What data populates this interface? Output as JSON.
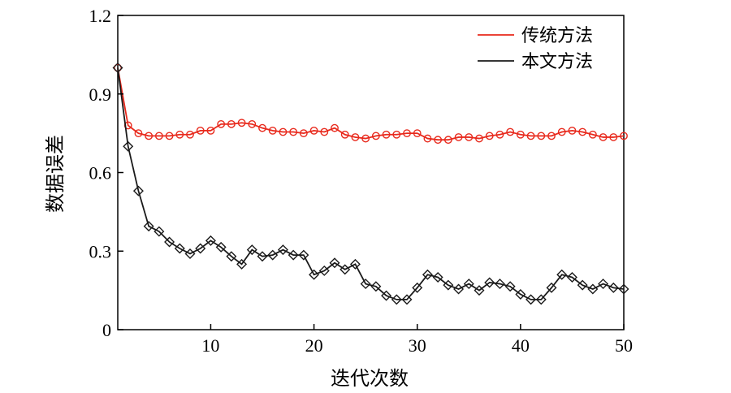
{
  "chart_data": {
    "type": "line",
    "xlabel": "迭代次数",
    "ylabel": "数据误差",
    "xlim": [
      1,
      50
    ],
    "ylim": [
      0,
      1.2
    ],
    "xticks": [
      10,
      20,
      30,
      40,
      50
    ],
    "yticks": [
      0,
      0.3,
      0.6,
      0.9,
      1.2
    ],
    "xtick_labels": [
      "10",
      "20",
      "30",
      "40",
      "50"
    ],
    "ytick_labels": [
      "0",
      "0.3",
      "0.6",
      "0.9",
      "1.2"
    ],
    "grid": false,
    "legend_position": "top-right",
    "x": [
      1,
      2,
      3,
      4,
      5,
      6,
      7,
      8,
      9,
      10,
      11,
      12,
      13,
      14,
      15,
      16,
      17,
      18,
      19,
      20,
      21,
      22,
      23,
      24,
      25,
      26,
      27,
      28,
      29,
      30,
      31,
      32,
      33,
      34,
      35,
      36,
      37,
      38,
      39,
      40,
      41,
      42,
      43,
      44,
      45,
      46,
      47,
      48,
      49,
      50
    ],
    "series": [
      {
        "name": "传统方法",
        "color": "#e8291c",
        "marker": "circle",
        "values": [
          1.0,
          0.78,
          0.75,
          0.74,
          0.74,
          0.74,
          0.745,
          0.745,
          0.76,
          0.76,
          0.785,
          0.785,
          0.79,
          0.785,
          0.77,
          0.76,
          0.755,
          0.755,
          0.75,
          0.76,
          0.755,
          0.77,
          0.745,
          0.735,
          0.73,
          0.74,
          0.745,
          0.745,
          0.75,
          0.75,
          0.73,
          0.725,
          0.725,
          0.735,
          0.735,
          0.73,
          0.74,
          0.745,
          0.755,
          0.745,
          0.74,
          0.74,
          0.74,
          0.755,
          0.76,
          0.755,
          0.745,
          0.735,
          0.735,
          0.74
        ]
      },
      {
        "name": "本文方法",
        "color": "#1a1a1a",
        "marker": "diamond",
        "values": [
          1.0,
          0.7,
          0.53,
          0.395,
          0.375,
          0.335,
          0.31,
          0.29,
          0.31,
          0.34,
          0.315,
          0.28,
          0.25,
          0.305,
          0.28,
          0.285,
          0.305,
          0.285,
          0.285,
          0.21,
          0.225,
          0.255,
          0.23,
          0.25,
          0.175,
          0.165,
          0.13,
          0.115,
          0.115,
          0.16,
          0.21,
          0.2,
          0.17,
          0.155,
          0.175,
          0.15,
          0.18,
          0.175,
          0.165,
          0.135,
          0.115,
          0.115,
          0.16,
          0.21,
          0.2,
          0.17,
          0.155,
          0.175,
          0.16,
          0.155
        ]
      }
    ]
  }
}
